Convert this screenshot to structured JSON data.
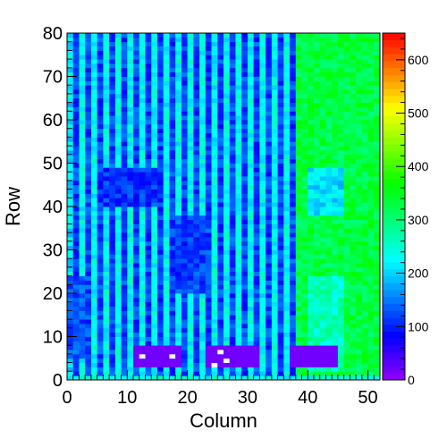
{
  "chart_data": {
    "type": "heatmap",
    "title": "",
    "xlabel": "Column",
    "ylabel": "Row",
    "xlim": [
      0,
      52
    ],
    "ylim": [
      0,
      80
    ],
    "x_ticks": [
      "0",
      "10",
      "20",
      "30",
      "40",
      "50"
    ],
    "y_ticks": [
      "0",
      "10",
      "20",
      "30",
      "40",
      "50",
      "60",
      "70",
      "80"
    ],
    "colorbar": {
      "range": [
        0,
        650
      ],
      "ticks": [
        "0",
        "100",
        "200",
        "300",
        "400",
        "500",
        "600"
      ],
      "palette": "rainbow-violet-to-red"
    },
    "columns": 52,
    "rows": 80,
    "regions": [
      {
        "cols": [
          0,
          1
        ],
        "rows": [
          0,
          80
        ],
        "value": 210
      },
      {
        "cols": [
          1,
          38
        ],
        "rows": [
          0,
          80
        ],
        "value_even_col": 230,
        "value_odd_col": 120
      },
      {
        "cols": [
          38,
          52
        ],
        "rows": [
          0,
          80
        ],
        "value": 330
      },
      {
        "cols": [
          5,
          16
        ],
        "rows": [
          40,
          49
        ],
        "value": 110
      },
      {
        "cols": [
          18,
          24
        ],
        "rows": [
          20,
          38
        ],
        "value": 120
      },
      {
        "cols": [
          0,
          3
        ],
        "rows": [
          5,
          24
        ],
        "value": 130
      },
      {
        "cols": [
          40,
          46
        ],
        "rows": [
          38,
          49
        ],
        "value": 210
      },
      {
        "cols": [
          40,
          46
        ],
        "rows": [
          2,
          24
        ],
        "value": 260
      },
      {
        "cols": [
          11,
          19
        ],
        "rows": [
          3,
          8
        ],
        "value": 20
      },
      {
        "cols": [
          23,
          32
        ],
        "rows": [
          3,
          8
        ],
        "value": 20
      },
      {
        "cols": [
          37,
          45
        ],
        "rows": [
          3,
          8
        ],
        "value": 20
      },
      {
        "cols": [
          0,
          52
        ],
        "rows": [
          0,
          1
        ],
        "value": 240
      }
    ],
    "hot_pixels": [
      {
        "col": 12,
        "row": 5,
        "value": 650
      },
      {
        "col": 17,
        "row": 5,
        "value": 650
      },
      {
        "col": 25,
        "row": 6,
        "value": 650
      },
      {
        "col": 26,
        "row": 4,
        "value": 650
      },
      {
        "col": 24,
        "row": 3,
        "value": 650
      }
    ]
  }
}
